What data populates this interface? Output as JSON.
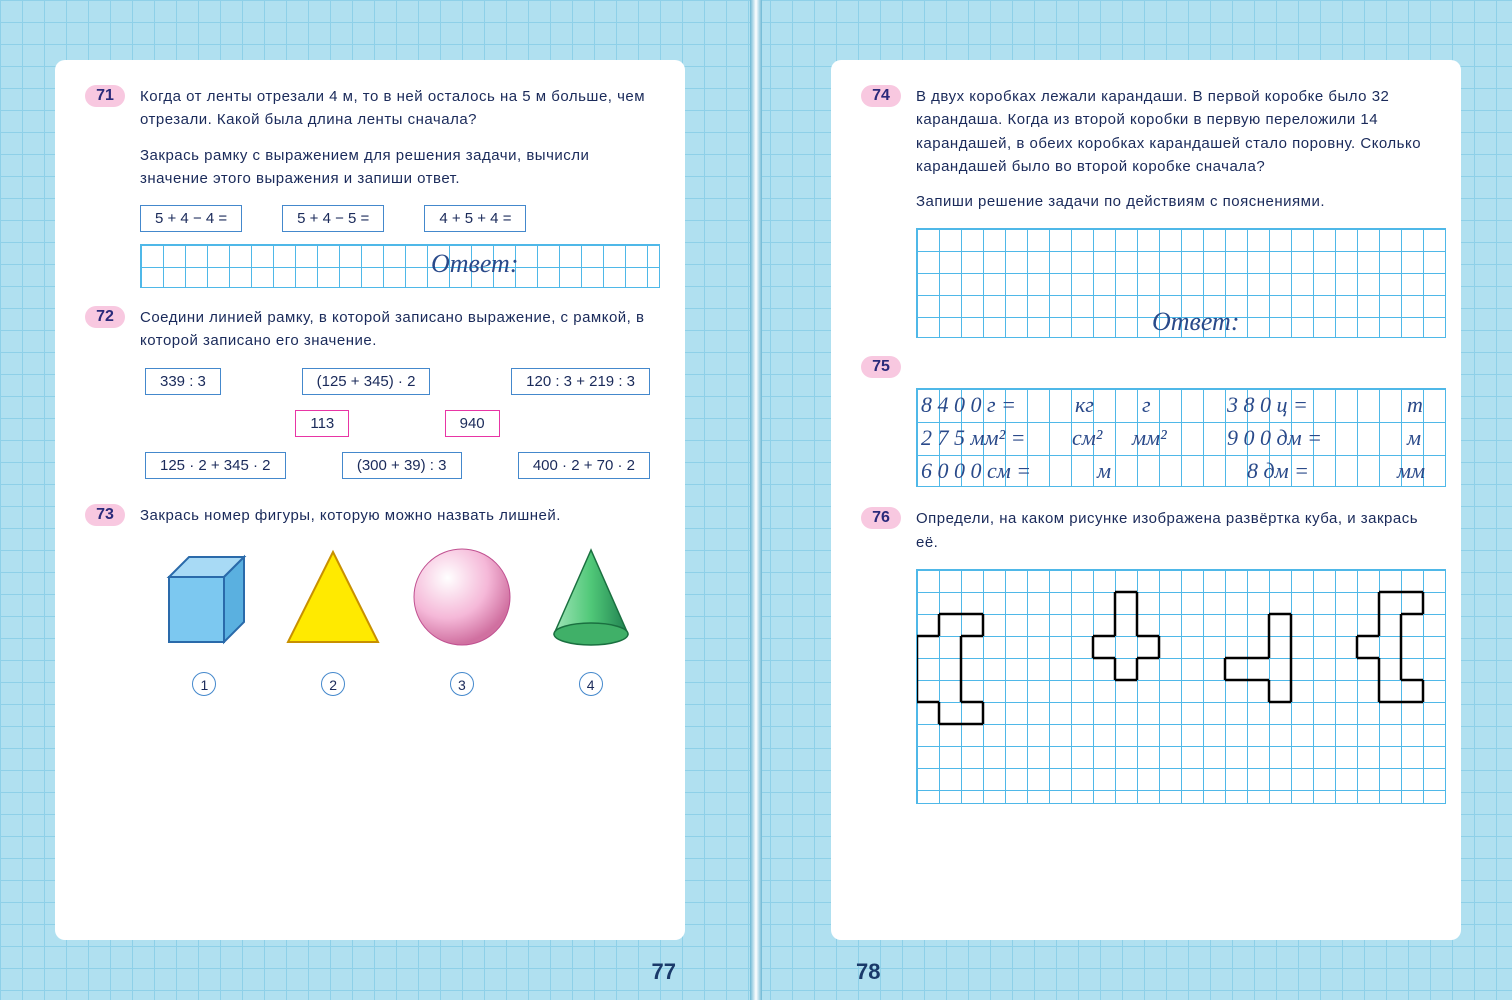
{
  "colors": {
    "bg": "#b0e0f0",
    "grid_bg": "#8ed0e8",
    "page_bg": "#ffffff",
    "badge_bg": "#f8c8e0",
    "text": "#1a2a5a",
    "box_border": "#4488cc",
    "val_border": "#e835a5",
    "math_grid": "#4fb8e8",
    "net_line": "#000000"
  },
  "page_left_num": "77",
  "page_right_num": "78",
  "t71": {
    "num": "71",
    "text": "Когда от ленты отрезали 4 м, то в ней осталось на 5 м больше, чем отрезали. Какой была длина ленты сначала?",
    "sub": "Закрась рамку с выражением для решения задачи, вычисли значение этого выражения и запиши ответ.",
    "e1": "5 + 4 − 4 =",
    "e2": "5 + 4 − 5 =",
    "e3": "4 + 5 + 4 =",
    "answer_label": "Ответ:"
  },
  "t72": {
    "num": "72",
    "text": "Соедини линией рамку, в которой записано выражение, с рамкой, в которой записано его значение.",
    "r1a": "339 : 3",
    "r1b": "(125 + 345) · 2",
    "r1c": "120 : 3 + 219 : 3",
    "v1": "113",
    "v2": "940",
    "r2a": "125 · 2 + 345 · 2",
    "r2b": "(300 + 39) : 3",
    "r2c": "400 · 2 + 70 · 2"
  },
  "t73": {
    "num": "73",
    "text": "Закрась номер фигуры, которую можно назвать лишней.",
    "shapes": [
      "cube",
      "triangle",
      "sphere",
      "cone"
    ],
    "shape_colors": [
      "#7cc8f0",
      "#ffea00",
      "#f5b8d8",
      "#50c878"
    ],
    "n1": "1",
    "n2": "2",
    "n3": "3",
    "n4": "4"
  },
  "t74": {
    "num": "74",
    "text": "В двух коробках лежали карандаши. В первой коробке было 32 карандаша. Когда из второй коробки в первую переложили 14 карандашей, в обеих коробках карандашей стало поровну. Сколько карандашей было во второй коробке сначала?",
    "sub": "Запиши решение задачи по действиям с пояснениями.",
    "answer_label": "Ответ:"
  },
  "t75": {
    "num": "75",
    "rows": [
      {
        "l": "8 4 0 0 г =",
        "u1": "кг",
        "u2": "г",
        "r": "3 8 0 ц =",
        "ru": "т"
      },
      {
        "l": "2 7 5 мм² =",
        "u1": "см²",
        "u2": "мм²",
        "r": "9 0 0 дм =",
        "ru": "м"
      },
      {
        "l": "6 0 0 0 см =",
        "u1": "м",
        "u2": "",
        "r": "8 дм =",
        "ru": "мм"
      }
    ]
  },
  "t76": {
    "num": "76",
    "text": "Определи, на каком рисунке изображена развёртка куба, и закрась её.",
    "cell": 22,
    "nets": [
      {
        "ox": 0,
        "oy": 1,
        "cells": [
          [
            1,
            0
          ],
          [
            2,
            0
          ],
          [
            0,
            1
          ],
          [
            1,
            1
          ],
          [
            0,
            2
          ],
          [
            1,
            2
          ],
          [
            0,
            3
          ],
          [
            1,
            3
          ],
          [
            1,
            4
          ],
          [
            2,
            4
          ]
        ]
      },
      {
        "ox": 8,
        "oy": 0,
        "cells": [
          [
            1,
            0
          ],
          [
            1,
            1
          ],
          [
            0,
            2
          ],
          [
            1,
            2
          ],
          [
            2,
            2
          ],
          [
            1,
            3
          ]
        ]
      },
      {
        "ox": 14,
        "oy": 1,
        "cells": [
          [
            2,
            0
          ],
          [
            2,
            1
          ],
          [
            0,
            2
          ],
          [
            1,
            2
          ],
          [
            2,
            2
          ],
          [
            2,
            3
          ]
        ]
      },
      {
        "ox": 20,
        "oy": 0,
        "cells": [
          [
            1,
            0
          ],
          [
            2,
            0
          ],
          [
            1,
            1
          ],
          [
            0,
            2
          ],
          [
            1,
            2
          ],
          [
            1,
            3
          ],
          [
            1,
            4
          ],
          [
            2,
            4
          ]
        ]
      }
    ]
  }
}
